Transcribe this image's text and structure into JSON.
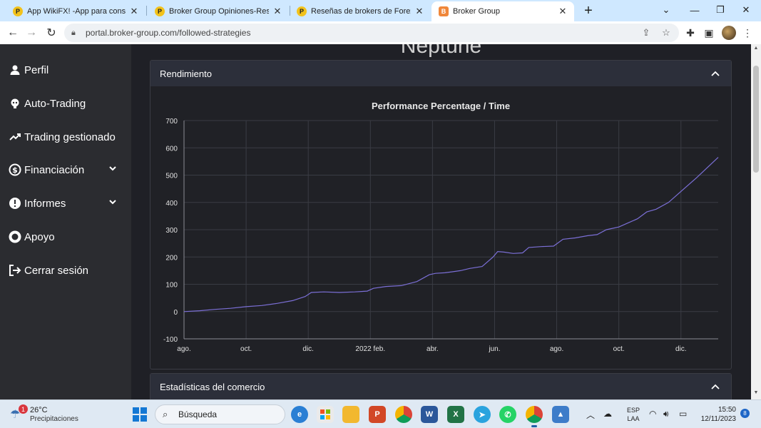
{
  "browser": {
    "tabs": [
      {
        "title": "App WikiFX! -App para consulta",
        "favicon": "wikifx-icon",
        "active": false
      },
      {
        "title": "Broker Group Opiniones-Reseña",
        "favicon": "wikifx-icon",
        "active": false
      },
      {
        "title": "Reseñas de brokers de Forex-Pla",
        "favicon": "wikifx-icon",
        "active": false
      },
      {
        "title": "Broker Group",
        "favicon": "broker-group-icon",
        "active": true
      }
    ],
    "new_tab_glyph": "+",
    "url": "portal.broker-group.com/followed-strategies"
  },
  "sidebar": {
    "items": [
      {
        "label": "Perfil",
        "icon": "user-icon",
        "expandable": false
      },
      {
        "label": "Auto-Trading",
        "icon": "robot-icon",
        "expandable": false
      },
      {
        "label": "Trading gestionado",
        "icon": "trend-icon",
        "expandable": false
      },
      {
        "label": "Financiación",
        "icon": "dollar-exchange-icon",
        "expandable": true
      },
      {
        "label": "Informes",
        "icon": "exclamation-icon",
        "expandable": true
      },
      {
        "label": "Apoyo",
        "icon": "lifebuoy-icon",
        "expandable": false
      },
      {
        "label": "Cerrar sesión",
        "icon": "logout-icon",
        "expandable": false
      }
    ]
  },
  "main": {
    "page_title": "Neptune",
    "performance_card": {
      "title": "Rendimiento"
    },
    "stats_card": {
      "title": "Estadísticas del comercio"
    }
  },
  "chart_data": {
    "type": "line",
    "title": "Performance Percentage / Time",
    "xlabel": "",
    "ylabel": "",
    "ylim": [
      -100,
      700
    ],
    "yticks": [
      -100,
      0,
      100,
      200,
      300,
      400,
      500,
      600,
      700
    ],
    "xticks": [
      "ago.",
      "oct.",
      "dic.",
      "2022 feb.",
      "abr.",
      "jun.",
      "ago.",
      "oct.",
      "dic."
    ],
    "x_range_months": [
      0,
      17.2
    ],
    "grid": true,
    "line_color": "#7b6fd6",
    "series": [
      {
        "x": [
          0,
          0.5,
          1.0,
          1.5,
          2.0,
          2.5,
          3.0,
          3.5,
          3.9,
          4.1,
          4.5,
          5.0,
          5.5,
          5.9,
          6.1,
          6.5,
          7.0,
          7.5,
          7.9,
          8.1,
          8.4,
          8.9,
          9.2,
          9.6,
          9.95,
          10.1,
          10.3,
          10.6,
          10.9,
          11.1,
          11.5,
          11.9,
          12.2,
          12.6,
          13.0,
          13.3,
          13.6,
          14.0,
          14.3,
          14.6,
          14.9,
          15.2,
          15.6,
          16.0,
          16.5,
          17.2
        ],
        "y": [
          0,
          3,
          8,
          12,
          18,
          22,
          30,
          40,
          55,
          70,
          72,
          70,
          72,
          75,
          85,
          92,
          95,
          110,
          135,
          140,
          142,
          150,
          158,
          165,
          200,
          220,
          218,
          213,
          215,
          235,
          238,
          240,
          265,
          270,
          278,
          282,
          300,
          310,
          325,
          340,
          365,
          375,
          400,
          440,
          490,
          565
        ]
      }
    ]
  },
  "taskbar": {
    "weather_temp": "26°C",
    "weather_desc": "Precipitaciones",
    "weather_badge": "1",
    "search_label": "Búsqueda",
    "lang_top": "ESP",
    "lang_bottom": "LAA",
    "time": "15:50",
    "date": "12/11/2023",
    "notification_count": "8"
  }
}
